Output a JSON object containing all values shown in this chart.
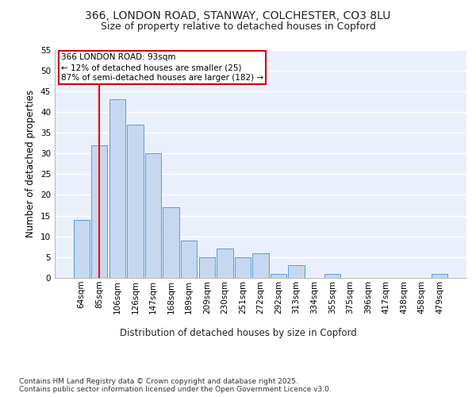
{
  "title1": "366, LONDON ROAD, STANWAY, COLCHESTER, CO3 8LU",
  "title2": "Size of property relative to detached houses in Copford",
  "xlabel": "Distribution of detached houses by size in Copford",
  "ylabel": "Number of detached properties",
  "categories": [
    "64sqm",
    "85sqm",
    "106sqm",
    "126sqm",
    "147sqm",
    "168sqm",
    "189sqm",
    "209sqm",
    "230sqm",
    "251sqm",
    "272sqm",
    "292sqm",
    "313sqm",
    "334sqm",
    "355sqm",
    "375sqm",
    "396sqm",
    "417sqm",
    "438sqm",
    "458sqm",
    "479sqm"
  ],
  "values": [
    14,
    32,
    43,
    37,
    30,
    17,
    9,
    5,
    7,
    5,
    6,
    1,
    3,
    0,
    1,
    0,
    0,
    0,
    0,
    0,
    1
  ],
  "bar_color": "#c5d8f0",
  "bar_edge_color": "#5b9bd5",
  "background_color": "#eaf0fb",
  "grid_color": "#ffffff",
  "annotation_box_text": "366 LONDON ROAD: 93sqm\n← 12% of detached houses are smaller (25)\n87% of semi-detached houses are larger (182) →",
  "annotation_box_edge_color": "#cc0000",
  "red_line_x": 1.0,
  "ylim": [
    0,
    55
  ],
  "yticks": [
    0,
    5,
    10,
    15,
    20,
    25,
    30,
    35,
    40,
    45,
    50,
    55
  ],
  "footer": "Contains HM Land Registry data © Crown copyright and database right 2025.\nContains public sector information licensed under the Open Government Licence v3.0.",
  "title_fontsize": 10,
  "subtitle_fontsize": 9,
  "axis_label_fontsize": 8.5,
  "tick_fontsize": 7.5,
  "annotation_fontsize": 7.5,
  "footer_fontsize": 6.5
}
